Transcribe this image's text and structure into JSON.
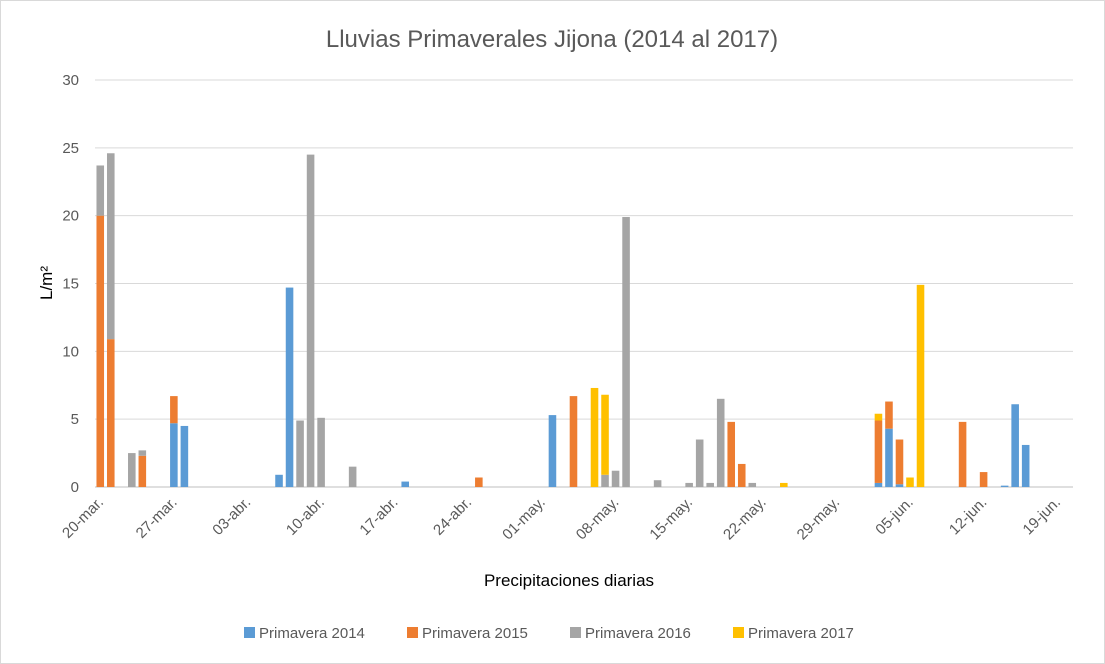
{
  "chart_data": {
    "type": "bar",
    "stacked": true,
    "title": "Lluvias Primaverales Jijona (2014 al 2017)",
    "xlabel": "Precipitaciones diarias",
    "ylabel": "L/m²",
    "ylim": [
      0,
      30
    ],
    "yticks": [
      0,
      5,
      10,
      15,
      20,
      25,
      30
    ],
    "x_range": [
      0,
      93
    ],
    "x_tick_labels": [
      "20-mar.",
      "27-mar.",
      "03-abr.",
      "10-abr.",
      "17-abr.",
      "24-abr.",
      "01-may.",
      "08-may.",
      "15-may.",
      "22-may.",
      "29-may.",
      "05-jun.",
      "12-jun.",
      "19-jun."
    ],
    "x_tick_days": [
      0,
      7,
      14,
      21,
      28,
      35,
      42,
      49,
      56,
      63,
      70,
      77,
      84,
      91
    ],
    "grid": true,
    "legend_position": "bottom",
    "series": [
      {
        "name": "Primavera 2014",
        "color": "#5b9bd5",
        "points": [
          [
            7,
            4.7
          ],
          [
            8,
            4.5
          ],
          [
            17,
            0.9
          ],
          [
            18,
            14.7
          ],
          [
            29,
            0.4
          ],
          [
            43,
            5.3
          ],
          [
            87,
            6.1
          ],
          [
            88,
            3.1
          ],
          [
            86,
            0.1
          ],
          [
            75,
            4.3
          ],
          [
            74,
            0.3
          ],
          [
            76,
            0.2
          ]
        ]
      },
      {
        "name": "Primavera 2015",
        "color": "#ed7d31",
        "points": [
          [
            0,
            20.0
          ],
          [
            1,
            10.9
          ],
          [
            4,
            2.3
          ],
          [
            7,
            2.0
          ],
          [
            36,
            0.7
          ],
          [
            45,
            6.7
          ],
          [
            60,
            4.8
          ],
          [
            61,
            1.7
          ],
          [
            74,
            4.6
          ],
          [
            75,
            2.0
          ],
          [
            76,
            3.3
          ],
          [
            82,
            4.8
          ],
          [
            84,
            1.1
          ]
        ]
      },
      {
        "name": "Primavera 2016",
        "color": "#a5a5a5",
        "points": [
          [
            0,
            3.7
          ],
          [
            1,
            13.7
          ],
          [
            3,
            2.5
          ],
          [
            4,
            0.4
          ],
          [
            19,
            4.9
          ],
          [
            20,
            24.5
          ],
          [
            21,
            5.1
          ],
          [
            24,
            1.5
          ],
          [
            48,
            0.9
          ],
          [
            49,
            1.2
          ],
          [
            50,
            19.9
          ],
          [
            53,
            0.5
          ],
          [
            56,
            0.3
          ],
          [
            57,
            3.5
          ],
          [
            58,
            0.3
          ],
          [
            59,
            6.5
          ],
          [
            62,
            0.3
          ]
        ]
      },
      {
        "name": "Primavera 2017",
        "color": "#ffc000",
        "points": [
          [
            47,
            7.3
          ],
          [
            48,
            5.9
          ],
          [
            65,
            0.3
          ],
          [
            74,
            0.5
          ],
          [
            77,
            0.7
          ],
          [
            78,
            14.9
          ]
        ]
      }
    ]
  }
}
